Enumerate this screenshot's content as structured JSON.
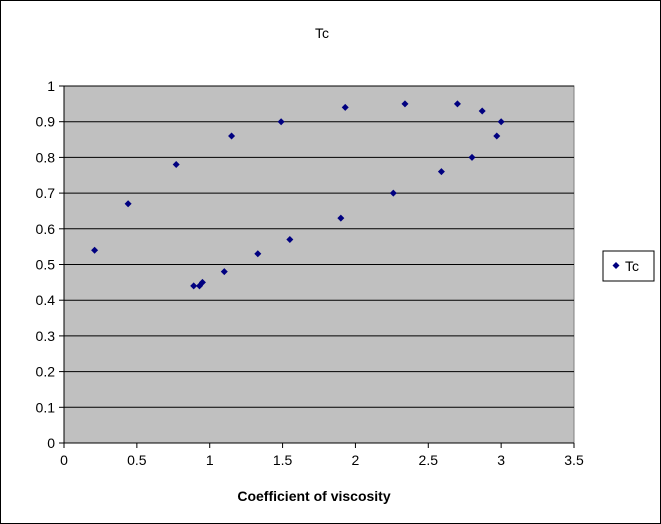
{
  "chart_data": {
    "type": "scatter",
    "title": "Tc",
    "xlabel": "Coefficient of viscosity",
    "ylabel": "",
    "xlim": [
      0,
      3.5
    ],
    "ylim": [
      0,
      1
    ],
    "x_ticks": [
      "0",
      "0.5",
      "1",
      "1.5",
      "2",
      "2.5",
      "3",
      "3.5"
    ],
    "y_ticks": [
      "0",
      "0.1",
      "0.2",
      "0.3",
      "0.4",
      "0.5",
      "0.6",
      "0.7",
      "0.8",
      "0.9",
      "1"
    ],
    "grid": "horizontal",
    "legend_position": "right",
    "plot_background": "#c0c0c0",
    "series": [
      {
        "name": "Tc",
        "color": "#000080",
        "marker": "diamond",
        "x": [
          0.21,
          0.44,
          0.77,
          0.89,
          0.93,
          0.95,
          1.1,
          1.15,
          1.33,
          1.49,
          1.55,
          1.9,
          1.93,
          2.26,
          2.34,
          2.59,
          2.7,
          2.8,
          2.87,
          2.97,
          3.0
        ],
        "y": [
          0.54,
          0.67,
          0.78,
          0.44,
          0.44,
          0.45,
          0.48,
          0.86,
          0.53,
          0.9,
          0.57,
          0.63,
          0.94,
          0.7,
          0.95,
          0.76,
          0.95,
          0.8,
          0.93,
          0.86,
          0.9
        ]
      }
    ]
  }
}
